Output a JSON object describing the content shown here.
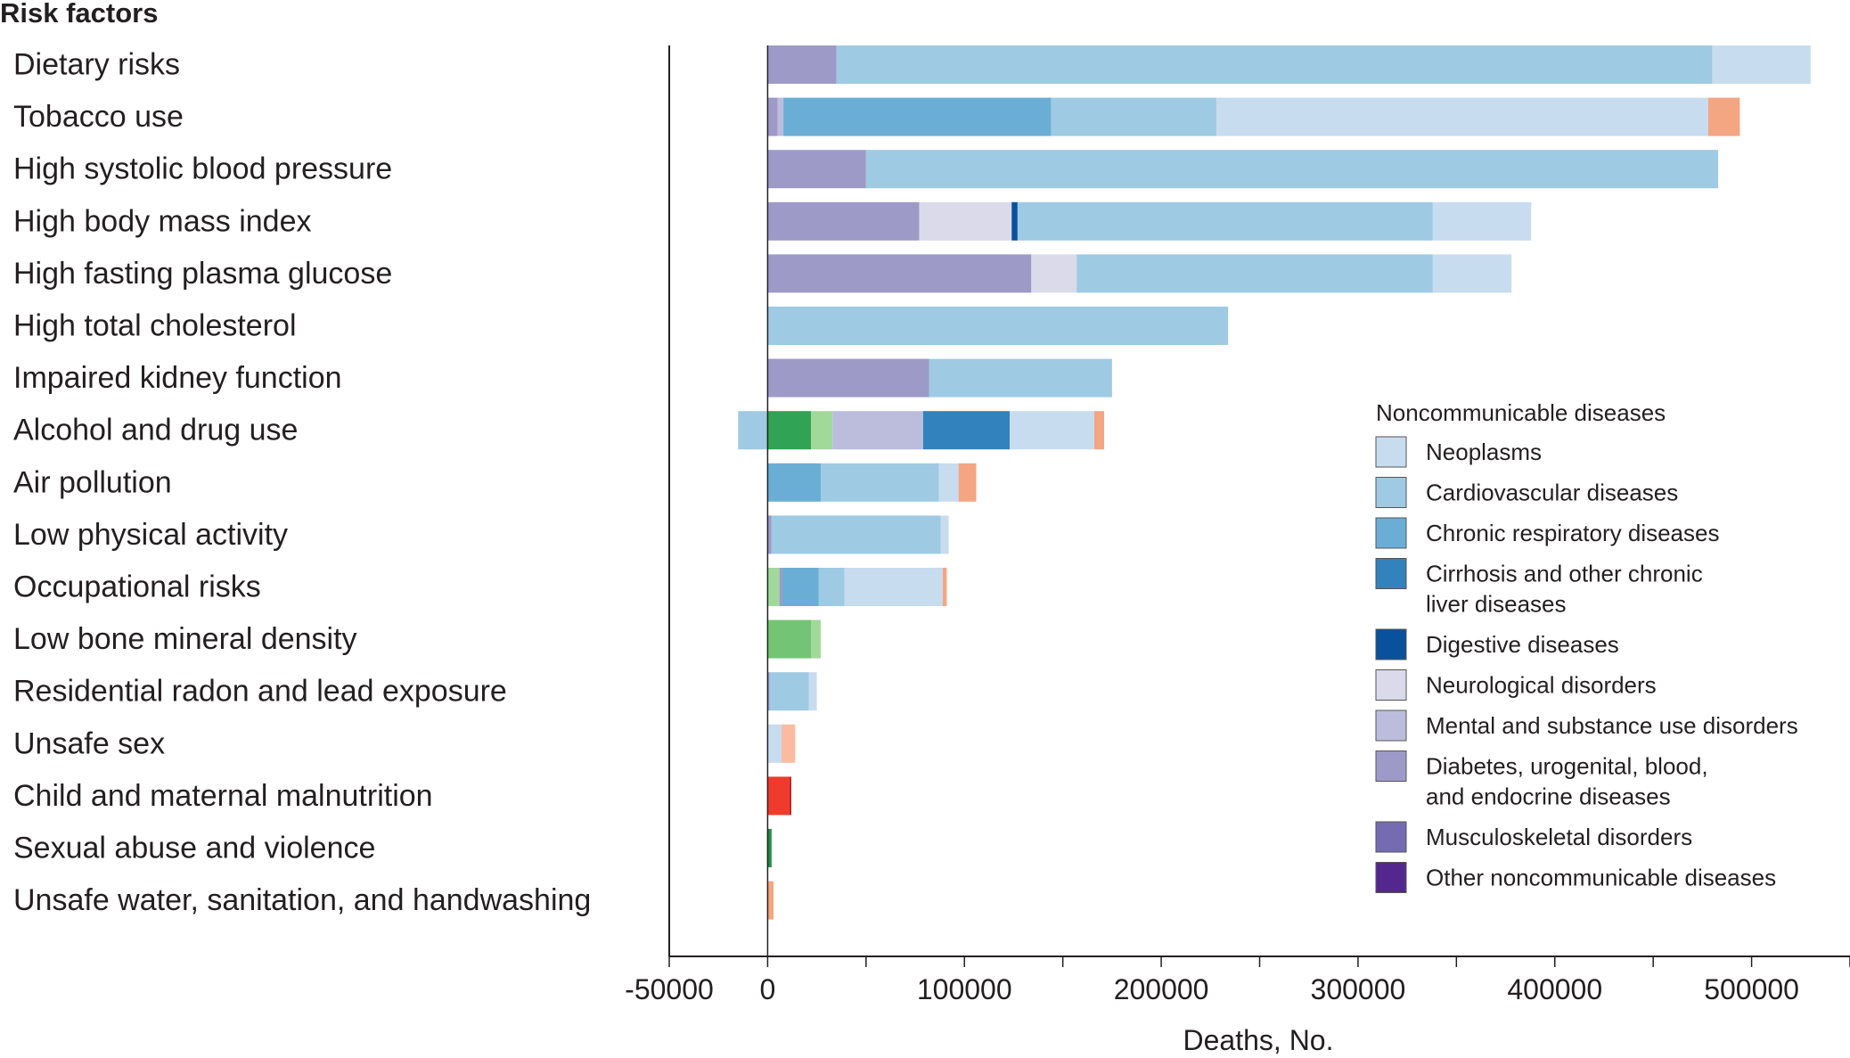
{
  "chart_data": {
    "type": "bar",
    "orientation": "horizontal",
    "stacked": true,
    "title": "Risk factors",
    "xlabel": "Deaths, No.",
    "xlim": [
      -50000,
      550000
    ],
    "xticks": [
      -50000,
      0,
      100000,
      200000,
      300000,
      400000,
      500000
    ],
    "xtick_labels": [
      "-50000",
      "0",
      "100000",
      "200000",
      "300000",
      "400000",
      "500000"
    ],
    "grid": false,
    "legend_position": "right",
    "legend_title": "Noncommunicable diseases",
    "categories": [
      "Dietary risks",
      "Tobacco use",
      "High systolic blood pressure",
      "High body mass index",
      "High fasting plasma glucose",
      "High total cholesterol",
      "Impaired kidney function",
      "Alcohol and drug use",
      "Air pollution",
      "Low physical activity",
      "Occupational risks",
      "Low bone mineral density",
      "Residential radon and lead exposure",
      "Unsafe sex",
      "Child and maternal malnutrition",
      "Sexual abuse and violence",
      "Unsafe water, sanitation, and handwashing"
    ],
    "legend": [
      {
        "label": "Neoplasms",
        "color": "#c8dcef"
      },
      {
        "label": "Cardiovascular diseases",
        "color": "#9ecae3"
      },
      {
        "label": "Chronic respiratory diseases",
        "color": "#6aaed6"
      },
      {
        "label": "Cirrhosis and other chronic liver diseases",
        "color": "#3182bd"
      },
      {
        "label": "Digestive diseases",
        "color": "#08519c"
      },
      {
        "label": "Neurological disorders",
        "color": "#dadaeb"
      },
      {
        "label": "Mental and substance use disorders",
        "color": "#bcbddc"
      },
      {
        "label": "Diabetes, urogenital, blood, and endocrine diseases",
        "color": "#9e9ac8"
      },
      {
        "label": "Musculoskeletal disorders",
        "color": "#756bb1"
      },
      {
        "label": "Other noncommunicable diseases",
        "color": "#54278f"
      }
    ],
    "segments": [
      [
        {
          "value": 35000,
          "color": "#9e9ac8"
        },
        {
          "value": 445000,
          "color": "#9ecae3"
        },
        {
          "value": 50000,
          "color": "#c8dcef"
        }
      ],
      [
        {
          "value": 5000,
          "color": "#9e9ac8"
        },
        {
          "value": 3000,
          "color": "#bcbddc"
        },
        {
          "value": 136000,
          "color": "#6aaed6"
        },
        {
          "value": 84000,
          "color": "#9ecae3"
        },
        {
          "value": 250000,
          "color": "#c8dcef"
        },
        {
          "value": 16000,
          "color": "#f4a582"
        }
      ],
      [
        {
          "value": 50000,
          "color": "#9e9ac8"
        },
        {
          "value": 433000,
          "color": "#9ecae3"
        }
      ],
      [
        {
          "value": 77000,
          "color": "#9e9ac8"
        },
        {
          "value": 47000,
          "color": "#dadaeb"
        },
        {
          "value": 3000,
          "color": "#08519c"
        },
        {
          "value": 211000,
          "color": "#9ecae3"
        },
        {
          "value": 50000,
          "color": "#c8dcef"
        }
      ],
      [
        {
          "value": 134000,
          "color": "#9e9ac8"
        },
        {
          "value": 23000,
          "color": "#dadaeb"
        },
        {
          "value": 181000,
          "color": "#9ecae3"
        },
        {
          "value": 40000,
          "color": "#c8dcef"
        }
      ],
      [
        {
          "value": 234000,
          "color": "#9ecae3"
        }
      ],
      [
        {
          "value": 82000,
          "color": "#9e9ac8"
        },
        {
          "value": 93000,
          "color": "#9ecae3"
        }
      ],
      [
        {
          "value": -15000,
          "color": "#9ecae3"
        },
        {
          "value": 22000,
          "color": "#31a354"
        },
        {
          "value": 11000,
          "color": "#a1d99b"
        },
        {
          "value": 46000,
          "color": "#bcbddc"
        },
        {
          "value": 44000,
          "color": "#3182bd"
        },
        {
          "value": 43000,
          "color": "#c8dcef"
        },
        {
          "value": 5000,
          "color": "#f4a582"
        }
      ],
      [
        {
          "value": 27000,
          "color": "#6aaed6"
        },
        {
          "value": 60000,
          "color": "#9ecae3"
        },
        {
          "value": 10000,
          "color": "#c8dcef"
        },
        {
          "value": 9000,
          "color": "#f4a582"
        }
      ],
      [
        {
          "value": 2000,
          "color": "#9e9ac8"
        },
        {
          "value": 86000,
          "color": "#9ecae3"
        },
        {
          "value": 4000,
          "color": "#c8dcef"
        }
      ],
      [
        {
          "value": 6000,
          "color": "#a1d99b"
        },
        {
          "value": 1500,
          "color": "#9e9ac8"
        },
        {
          "value": 18500,
          "color": "#6aaed6"
        },
        {
          "value": 13000,
          "color": "#9ecae3"
        },
        {
          "value": 50000,
          "color": "#c8dcef"
        },
        {
          "value": 2000,
          "color": "#f4a582"
        }
      ],
      [
        {
          "value": 22000,
          "color": "#74c476"
        },
        {
          "value": 5000,
          "color": "#a1d99b"
        }
      ],
      [
        {
          "value": 1000,
          "color": "#9e9ac8"
        },
        {
          "value": 20000,
          "color": "#9ecae3"
        },
        {
          "value": 4000,
          "color": "#c8dcef"
        }
      ],
      [
        {
          "value": 7000,
          "color": "#c8dcef"
        },
        {
          "value": 7000,
          "color": "#fcbba1"
        }
      ],
      [
        {
          "value": 11000,
          "color": "#ef3b2c"
        },
        {
          "value": 1000,
          "color": "#cb181d"
        }
      ],
      [
        {
          "value": 2000,
          "color": "#238b45"
        }
      ],
      [
        {
          "value": 3000,
          "color": "#f4a582"
        }
      ]
    ]
  }
}
